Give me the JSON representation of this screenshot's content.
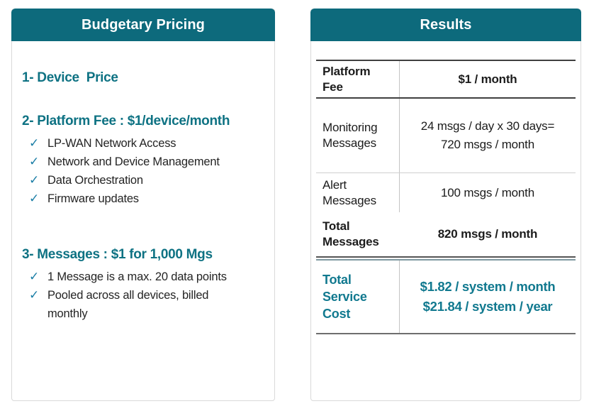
{
  "colors": {
    "header_background": "#0d6a7c",
    "heading_text": "#0e7283",
    "check_mark": "#1b7ea6",
    "total_cost_text": "#11798f"
  },
  "icons": {
    "check": "✓"
  },
  "left_panel": {
    "title": "Budgetary Pricing",
    "sections": [
      {
        "heading": "1- Device  Price",
        "items": []
      },
      {
        "heading": "2- Platform Fee : $1/device/month",
        "items": [
          "LP-WAN Network Access",
          "Network and Device Management",
          "Data Orchestration",
          "Firmware updates"
        ]
      },
      {
        "heading": "3- Messages : $1 for 1,000 Mgs",
        "items": [
          "1 Message is a max. 20 data points",
          "Pooled across all devices, billed monthly"
        ]
      }
    ]
  },
  "right_panel": {
    "title": "Results",
    "table": {
      "rows": [
        {
          "label": "Platform Fee",
          "value": "$1 / month"
        },
        {
          "label": "Monitoring Messages",
          "value": "24 msgs / day x 30 days=\n720 msgs / month"
        },
        {
          "label": "Alert Messages",
          "value": "100 msgs / month"
        },
        {
          "label": "Total Messages",
          "value": "820 msgs / month"
        },
        {
          "label": "Total Service Cost",
          "value": "$1.82 / system / month\n$21.84 / system / year"
        }
      ]
    }
  }
}
